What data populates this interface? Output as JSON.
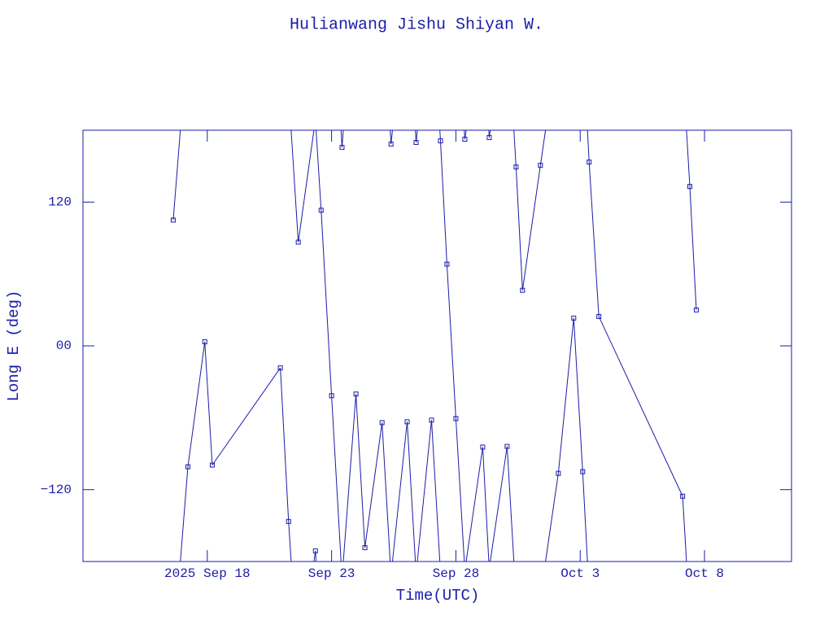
{
  "chart_data": {
    "type": "line",
    "title": "Hulianwang Jishu Shiyan W.",
    "x_label": "Time(UTC)",
    "y_label": "Long E (deg)",
    "color": "#1c1ca8",
    "xlim": [
      256,
      284.5
    ],
    "ylim": [
      -180,
      180
    ],
    "xticks": [
      {
        "value": 261,
        "label": "2025 Sep 18"
      },
      {
        "value": 266,
        "label": "Sep 23"
      },
      {
        "value": 271,
        "label": "Sep 28"
      },
      {
        "value": 276,
        "label": "Oct  3"
      },
      {
        "value": 281,
        "label": "Oct  8"
      }
    ],
    "yticks": [
      {
        "value": -120,
        "label": "−120"
      },
      {
        "value": 0,
        "label": "00"
      },
      120
    ],
    "x": [
      259.63,
      260.22,
      260.9,
      261.2,
      263.94,
      264.27,
      264.66,
      265.35,
      265.58,
      266.0,
      266.42,
      266.98,
      267.34,
      268.03,
      268.39,
      269.04,
      269.4,
      270.02,
      270.38,
      270.64,
      271.0,
      271.36,
      272.08,
      272.34,
      273.06,
      273.42,
      273.68,
      274.4,
      275.12,
      275.74,
      276.1,
      276.36,
      276.75,
      280.12,
      280.41,
      280.67
    ],
    "values": [
      105.0,
      -100.9,
      3.4,
      -99.5,
      -18.4,
      -146.6,
      86.6,
      -171.1,
      113.2,
      -41.6,
      165.7,
      -40.2,
      -168.4,
      -64.1,
      168.4,
      -63.4,
      169.8,
      -62.0,
      171.1,
      68.2,
      -60.7,
      172.5,
      -84.5,
      173.9,
      -83.9,
      149.3,
      46.4,
      150.7,
      -106.4,
      23.2,
      -105.0,
      153.4,
      24.5,
      -125.5,
      133.0,
      30.0
    ]
  }
}
